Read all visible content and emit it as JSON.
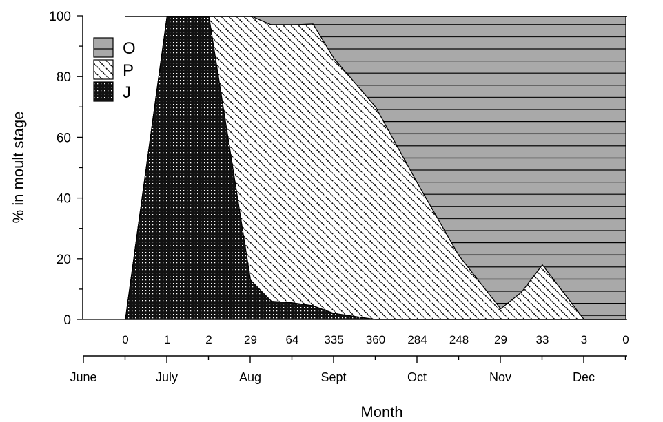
{
  "chart_data": {
    "type": "area",
    "stacked": true,
    "title": "",
    "xlabel": "Month",
    "ylabel": "% in moult stage",
    "ylim": [
      0,
      100
    ],
    "yticks": [
      0,
      20,
      40,
      60,
      80,
      100
    ],
    "x": [
      0,
      1,
      2,
      3,
      4,
      5,
      6,
      7,
      8,
      9,
      10,
      11,
      12
    ],
    "sample_counts": [
      "0",
      "1",
      "2",
      "29",
      "64",
      "335",
      "360",
      "284",
      "248",
      "29",
      "33",
      "3",
      "0"
    ],
    "months": [
      "June",
      "July",
      "Aug",
      "Sept",
      "Oct",
      "Nov",
      "Dec"
    ],
    "legend_position": "top-left",
    "series": [
      {
        "name": "J",
        "pattern": "dotted-black",
        "color": "#111111",
        "points": [
          [
            0,
            0
          ],
          [
            1,
            100
          ],
          [
            2,
            100
          ],
          [
            3,
            13
          ],
          [
            3.5,
            6
          ],
          [
            4,
            5.5
          ],
          [
            4.5,
            4.5
          ],
          [
            5,
            2
          ],
          [
            6,
            0
          ],
          [
            7,
            0
          ],
          [
            8,
            0
          ],
          [
            9,
            0
          ],
          [
            10,
            0
          ],
          [
            11,
            0
          ],
          [
            12,
            0
          ]
        ]
      },
      {
        "name": "P",
        "pattern": "diagonal-hatch",
        "color": "#ffffff",
        "points": [
          [
            0,
            0
          ],
          [
            1,
            0
          ],
          [
            2,
            0
          ],
          [
            3,
            87
          ],
          [
            3.5,
            91
          ],
          [
            4,
            91.5
          ],
          [
            4.5,
            92.8
          ],
          [
            5,
            84
          ],
          [
            6,
            70
          ],
          [
            7,
            45
          ],
          [
            8,
            21
          ],
          [
            9,
            3.5
          ],
          [
            9.5,
            9
          ],
          [
            10,
            18
          ],
          [
            11,
            0
          ],
          [
            12,
            0
          ]
        ]
      },
      {
        "name": "O",
        "pattern": "horizontal-lines-grey",
        "color": "#a9a9a9",
        "points": [
          [
            0,
            0
          ],
          [
            1,
            0
          ],
          [
            2,
            0
          ],
          [
            3,
            0
          ],
          [
            3.5,
            3
          ],
          [
            4,
            3
          ],
          [
            4.5,
            2.7
          ],
          [
            5,
            14
          ],
          [
            6,
            30
          ],
          [
            7,
            55
          ],
          [
            8,
            79
          ],
          [
            9,
            96.5
          ],
          [
            9.5,
            91
          ],
          [
            10,
            82
          ],
          [
            11,
            100
          ],
          [
            12,
            100
          ]
        ]
      }
    ]
  }
}
